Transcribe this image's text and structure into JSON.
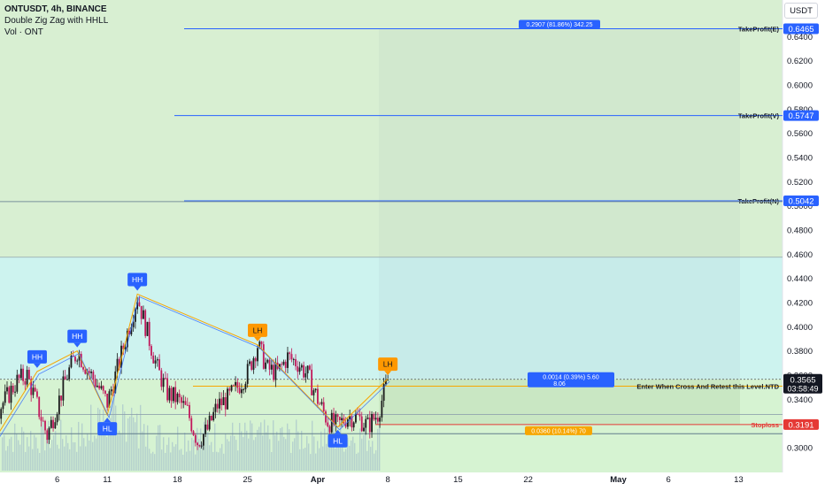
{
  "header": {
    "symbol_line": "ONTUSDT, 4h, BINANCE",
    "indicator": "Double Zig Zag with HHLL",
    "volume": "Vol · ONT"
  },
  "currency_button": "USDT",
  "colors": {
    "tp_line": "#2962ff",
    "entry_line": "#f7a600",
    "stop_line": "#e53935",
    "hh_label": "#2962ff",
    "lh_label": "#ff9800",
    "zone_upper": "#d8efd2",
    "zone_mid": "#cdf3ef",
    "zone_lower": "#d6f3d2",
    "zone_proj": "#d4e8d8",
    "candle_up": "#1a1a1a",
    "candle_down": "#c2185b"
  },
  "chart_data": {
    "type": "candlestick",
    "symbol": "ONTUSDT",
    "interval": "4h",
    "exchange": "BINANCE",
    "y_axis": {
      "ticks": [
        0.3,
        0.32,
        0.34,
        0.36,
        0.38,
        0.4,
        0.42,
        0.44,
        0.46,
        0.48,
        0.5,
        0.52,
        0.54,
        0.56,
        0.58,
        0.6,
        0.62,
        0.64
      ],
      "tick_labels": [
        "0.3000",
        "0.3200",
        "0.3400",
        "0.3600",
        "0.3800",
        "0.4000",
        "0.4200",
        "0.4400",
        "0.4600",
        "0.4800",
        "0.5000",
        "0.5200",
        "0.5400",
        "0.5600",
        "0.5800",
        "0.6000",
        "0.6200",
        "0.6400"
      ]
    },
    "x_axis": {
      "tick_labels": [
        "6",
        "11",
        "18",
        "25",
        "Apr",
        "8",
        "15",
        "22",
        "May",
        "6",
        "13"
      ]
    },
    "price_series": [
      {
        "x": "Feb 29",
        "y": 0.33
      },
      {
        "x": "Mar 1",
        "y": 0.342
      },
      {
        "x": "Mar 2",
        "y": 0.355
      },
      {
        "x": "Mar 3",
        "y": 0.36
      },
      {
        "x": "Mar 4",
        "y": 0.335
      },
      {
        "x": "Mar 5",
        "y": 0.31
      },
      {
        "x": "Mar 6",
        "y": 0.335
      },
      {
        "x": "Mar 7",
        "y": 0.36
      },
      {
        "x": "Mar 8",
        "y": 0.38
      },
      {
        "x": "Mar 9",
        "y": 0.365
      },
      {
        "x": "Mar 10",
        "y": 0.352
      },
      {
        "x": "Mar 11",
        "y": 0.337
      },
      {
        "x": "Mar 12",
        "y": 0.365
      },
      {
        "x": "Mar 13",
        "y": 0.395
      },
      {
        "x": "Mar 14",
        "y": 0.425
      },
      {
        "x": "Mar 15",
        "y": 0.395
      },
      {
        "x": "Mar 16",
        "y": 0.365
      },
      {
        "x": "Mar 17",
        "y": 0.345
      },
      {
        "x": "Mar 18",
        "y": 0.34
      },
      {
        "x": "Mar 19",
        "y": 0.33
      },
      {
        "x": "Mar 20",
        "y": 0.305
      },
      {
        "x": "Mar 21",
        "y": 0.315
      },
      {
        "x": "Mar 22",
        "y": 0.335
      },
      {
        "x": "Mar 23",
        "y": 0.34
      },
      {
        "x": "Mar 24",
        "y": 0.35
      },
      {
        "x": "Mar 25",
        "y": 0.362
      },
      {
        "x": "Mar 26",
        "y": 0.385
      },
      {
        "x": "Mar 27",
        "y": 0.365
      },
      {
        "x": "Mar 28",
        "y": 0.362
      },
      {
        "x": "Mar 29",
        "y": 0.375
      },
      {
        "x": "Mar 30",
        "y": 0.37
      },
      {
        "x": "Mar 31",
        "y": 0.36
      },
      {
        "x": "Apr 1",
        "y": 0.34
      },
      {
        "x": "Apr 2",
        "y": 0.322
      },
      {
        "x": "Apr 3",
        "y": 0.318
      },
      {
        "x": "Apr 4",
        "y": 0.326
      },
      {
        "x": "Apr 5",
        "y": 0.325
      },
      {
        "x": "Apr 6",
        "y": 0.318
      },
      {
        "x": "Apr 7",
        "y": 0.328
      },
      {
        "x": "Apr 8",
        "y": 0.356
      }
    ],
    "zigzag_labels": [
      {
        "text": "HH",
        "x": "Mar 4",
        "y": 0.363,
        "type": "high"
      },
      {
        "text": "HH",
        "x": "Mar 8",
        "y": 0.38,
        "type": "high"
      },
      {
        "text": "HL",
        "x": "Mar 11",
        "y": 0.327,
        "type": "low"
      },
      {
        "text": "HH",
        "x": "Mar 14",
        "y": 0.427,
        "type": "high"
      },
      {
        "text": "LH",
        "x": "Mar 26",
        "y": 0.385,
        "type": "high"
      },
      {
        "text": "HL",
        "x": "Apr 3",
        "y": 0.317,
        "type": "low"
      },
      {
        "text": "LH",
        "x": "Apr 8",
        "y": 0.357,
        "type": "high"
      }
    ],
    "levels": [
      {
        "name": "TakeProfit(E)",
        "price": 0.6465,
        "price_label": "0.6465",
        "color": "#2962ff"
      },
      {
        "name": "TakeProfit(V)",
        "price": 0.5747,
        "price_label": "0.5747",
        "color": "#2962ff"
      },
      {
        "name": "TakeProfit(N)",
        "price": 0.5042,
        "price_label": "0.5042",
        "color": "#2962ff"
      },
      {
        "name": "Enter When Cross And Retest this Level.NTD",
        "price": 0.3509,
        "price_label": "0.3509",
        "color": "#f7a600"
      },
      {
        "name": "Stoploss",
        "price": 0.3191,
        "price_label": "0.3191",
        "color": "#e53935"
      }
    ],
    "last_price": {
      "price": 0.3565,
      "label": "0.3565",
      "countdown": "03:58:49"
    },
    "measure_labels": [
      {
        "text": "0.2907 (81.86%) 342.25",
        "price": 0.6465
      },
      {
        "text": "0.0014 (0.39%) 5.60",
        "text2": "8.06",
        "price": 0.3565
      },
      {
        "text": "0.0360 (10.14%) 70",
        "price": 0.3191
      }
    ]
  }
}
